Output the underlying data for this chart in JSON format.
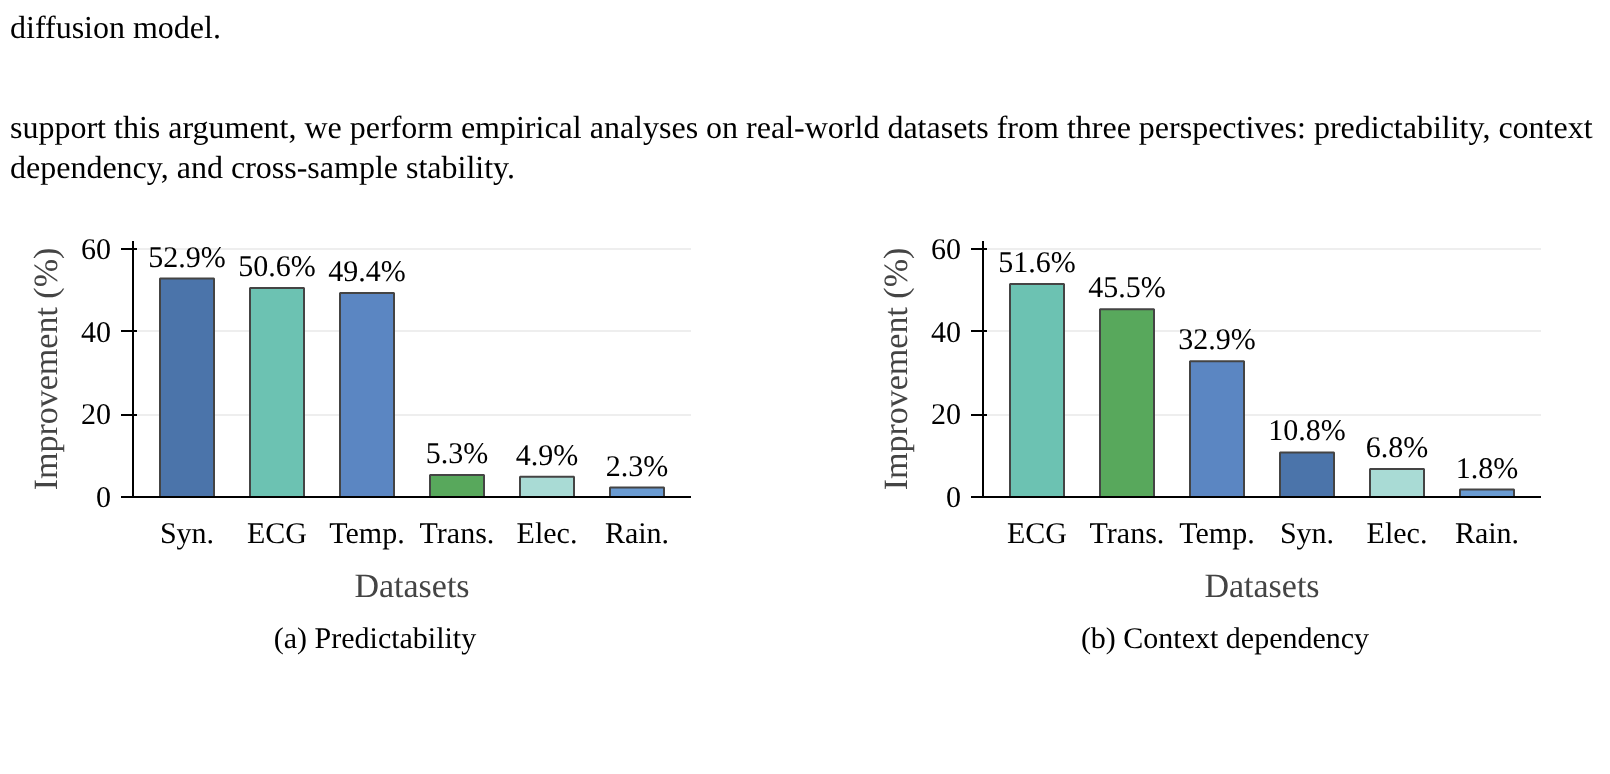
{
  "chart_data": [
    {
      "type": "bar",
      "xlabel": "Datasets",
      "ylabel": "Improvement (%)",
      "categories": [
        "Syn.",
        "ECG",
        "Temp.",
        "Trans.",
        "Elec.",
        "Rain."
      ],
      "values": [
        52.9,
        50.6,
        49.4,
        5.3,
        4.9,
        2.3
      ],
      "colors": [
        "#4b74aa",
        "#6cc2b2",
        "#5b86c2",
        "#58a85c",
        "#a9dbd5",
        "#6a9bd2"
      ],
      "value_labels": [
        "52.9%",
        "50.6%",
        "49.4%",
        "5.3%",
        "4.9%",
        "2.3%"
      ],
      "ylim": [
        0,
        62
      ],
      "yticks": [
        0,
        20,
        40,
        60
      ],
      "grid": "y",
      "annotations": [
        "diffusion model.",
        "support this argument, we perform empirical analyses on real-world datasets from three perspectives: predictability, context dependency, and cross-sample stability.",
        "(a) Predictability"
      ]
    },
    {
      "type": "bar",
      "xlabel": "Datasets",
      "ylabel": "Improvement (%)",
      "categories": [
        "ECG",
        "Trans.",
        "Temp.",
        "Syn.",
        "Elec.",
        "Rain."
      ],
      "values": [
        51.6,
        45.5,
        32.9,
        10.8,
        6.8,
        1.8
      ],
      "colors": [
        "#6cc2b2",
        "#58a85c",
        "#5b86c2",
        "#4b74aa",
        "#a9dbd5",
        "#6a9bd2"
      ],
      "value_labels": [
        "51.6%",
        "45.5%",
        "32.9%",
        "10.8%",
        "6.8%",
        "1.8%"
      ],
      "ylim": [
        0,
        62
      ],
      "yticks": [
        0,
        20,
        40,
        60
      ],
      "grid": "y",
      "annotations": [
        "(b) Context dependency"
      ]
    }
  ]
}
